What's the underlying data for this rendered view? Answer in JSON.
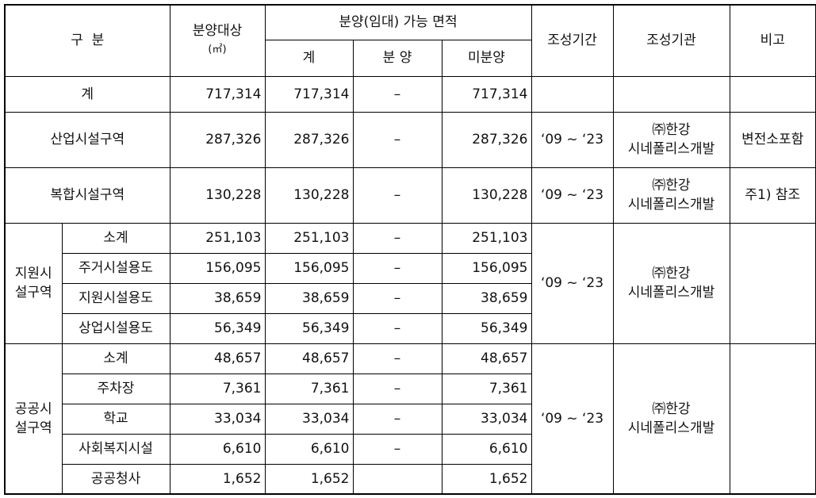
{
  "header": {
    "gubun": "구  분",
    "target_line1": "분양대상",
    "target_line2": "(㎡)",
    "area_group": "분양(임대) 가능 면적",
    "sub_total": "계",
    "sub_sold": "분 양",
    "sub_unsold": "미분양",
    "period": "조성기간",
    "agency": "조성기관",
    "remark": "비고"
  },
  "dash": "–",
  "rows": {
    "total": {
      "label": "계",
      "target": "717,314",
      "total": "717,314",
      "sold": "–",
      "unsold": "717,314"
    },
    "industrial": {
      "label": "산업시설구역",
      "target": "287,326",
      "total": "287,326",
      "sold": "–",
      "unsold": "287,326",
      "period": "‘09 ~ ‘23",
      "agency_l1": "㈜한강",
      "agency_l2": "시네폴리스개발",
      "remark": "변전소포함"
    },
    "complex": {
      "label": "복합시설구역",
      "target": "130,228",
      "total": "130,228",
      "sold": "–",
      "unsold": "130,228",
      "period": "‘09 ~ ‘23",
      "agency_l1": "㈜한강",
      "agency_l2": "시네폴리스개발",
      "remark": "주1) 참조"
    }
  },
  "support": {
    "group_l1": "지원시",
    "group_l2": "설구역",
    "period": "‘09 ~ ‘23",
    "agency_l1": "㈜한강",
    "agency_l2": "시네폴리스개발",
    "items": [
      {
        "label": "소계",
        "target": "251,103",
        "total": "251,103",
        "sold": "–",
        "unsold": "251,103"
      },
      {
        "label": "주거시설용도",
        "target": "156,095",
        "total": "156,095",
        "sold": "–",
        "unsold": "156,095"
      },
      {
        "label": "지원시설용도",
        "target": "38,659",
        "total": "38,659",
        "sold": "–",
        "unsold": "38,659"
      },
      {
        "label": "상업시설용도",
        "target": "56,349",
        "total": "56,349",
        "sold": "–",
        "unsold": "56,349"
      }
    ]
  },
  "public": {
    "group_l1": "공공시",
    "group_l2": "설구역",
    "period": "‘09 ~ ‘23",
    "agency_l1": "㈜한강",
    "agency_l2": "시네폴리스개발",
    "items": [
      {
        "label": "소계",
        "target": "48,657",
        "total": "48,657",
        "sold": "–",
        "unsold": "48,657"
      },
      {
        "label": "주차장",
        "target": "7,361",
        "total": "7,361",
        "sold": "–",
        "unsold": "7,361"
      },
      {
        "label": "학교",
        "target": "33,034",
        "total": "33,034",
        "sold": "–",
        "unsold": "33,034"
      },
      {
        "label": "사회복지시설",
        "target": "6,610",
        "total": "6,610",
        "sold": "–",
        "unsold": "6,610"
      },
      {
        "label": "공공청사",
        "target": "1,652",
        "total": "1,652",
        "sold": "",
        "unsold": "1,652"
      }
    ]
  }
}
